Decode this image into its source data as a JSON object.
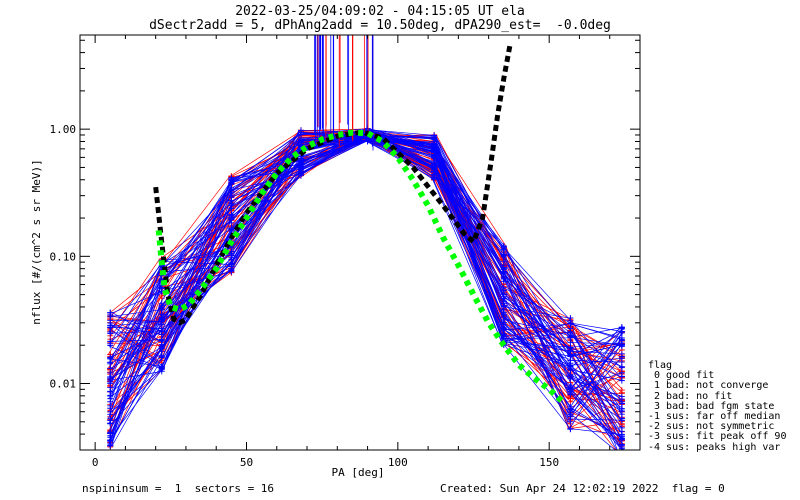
{
  "header": {
    "title_line1": "2022-03-25/04:09:02 - 04:15:05 UT ela",
    "title_line2": "dSectr2add = 5, dPhAng2add = 10.50deg, dPA290_est=  -0.0deg"
  },
  "footer": {
    "left": "nspininsum =  1  sectors = 16",
    "right": "Created: Sun Apr 24 12:02:19 2022  flag = 0"
  },
  "legend": {
    "title": "flag",
    "items": [
      " 0 good fit",
      " 1 bad: not converge",
      " 2 bad: no fit",
      " 3 bad: bad fgm state",
      "-1 sus: far off median",
      "-2 sus: not symmetric",
      "-3 sus: fit peak off 90",
      "-4 sus: peaks high var"
    ]
  },
  "colors": {
    "red": "#ff0000",
    "blue": "#0000ff",
    "green": "#00ff00",
    "black": "#000000"
  },
  "chart_data": {
    "type": "line",
    "xlabel": "PA [deg]",
    "ylabel": "nflux [#/(cm^2 s sr MeV)]",
    "xlim": [
      -5,
      180
    ],
    "ylim": [
      0.003,
      5.5
    ],
    "yscale": "log",
    "xticks": [
      0,
      50,
      100,
      150
    ],
    "xtick_labels": [
      "0",
      "50",
      "100",
      "150"
    ],
    "yticks": [
      0.01,
      0.1,
      1.0
    ],
    "ytick_labels": [
      "0.01",
      "0.10",
      "1.00"
    ],
    "pa_bins_left": [
      5,
      22,
      45,
      68,
      90
    ],
    "pa_bins_right": [
      90,
      112,
      135,
      157,
      174
    ],
    "profiles": {
      "count_blue": 60,
      "count_red": 40,
      "left_center": [
        0.011,
        0.035,
        0.18,
        0.65,
        0.9
      ],
      "right_center": [
        0.9,
        0.6,
        0.05,
        0.012,
        0.009
      ]
    },
    "spikes": {
      "pa_range": [
        72,
        92
      ],
      "top": 5.5
    },
    "fit_green": {
      "x": [
        21,
        22,
        23,
        25,
        28,
        31,
        35,
        40,
        45,
        50,
        55,
        60,
        65,
        70,
        75,
        80,
        85,
        90,
        95,
        100,
        105,
        110,
        115,
        120,
        125,
        130,
        135,
        140,
        145,
        150,
        155
      ],
      "y": [
        0.16,
        0.09,
        0.055,
        0.04,
        0.038,
        0.042,
        0.055,
        0.08,
        0.13,
        0.2,
        0.31,
        0.45,
        0.6,
        0.73,
        0.83,
        0.9,
        0.94,
        0.93,
        0.8,
        0.6,
        0.4,
        0.25,
        0.14,
        0.085,
        0.05,
        0.03,
        0.02,
        0.014,
        0.011,
        0.009,
        0.007
      ]
    },
    "fit_black": {
      "x": [
        20,
        22,
        24,
        26,
        28,
        30,
        35,
        40,
        45,
        50,
        60,
        70,
        80,
        88,
        95,
        105,
        115,
        122,
        125,
        128,
        131,
        133,
        135,
        137
      ],
      "y": [
        0.35,
        0.13,
        0.05,
        0.032,
        0.03,
        0.032,
        0.05,
        0.085,
        0.14,
        0.22,
        0.45,
        0.7,
        0.88,
        0.95,
        0.85,
        0.5,
        0.25,
        0.15,
        0.13,
        0.2,
        0.6,
        1.3,
        2.5,
        4.5
      ]
    }
  }
}
